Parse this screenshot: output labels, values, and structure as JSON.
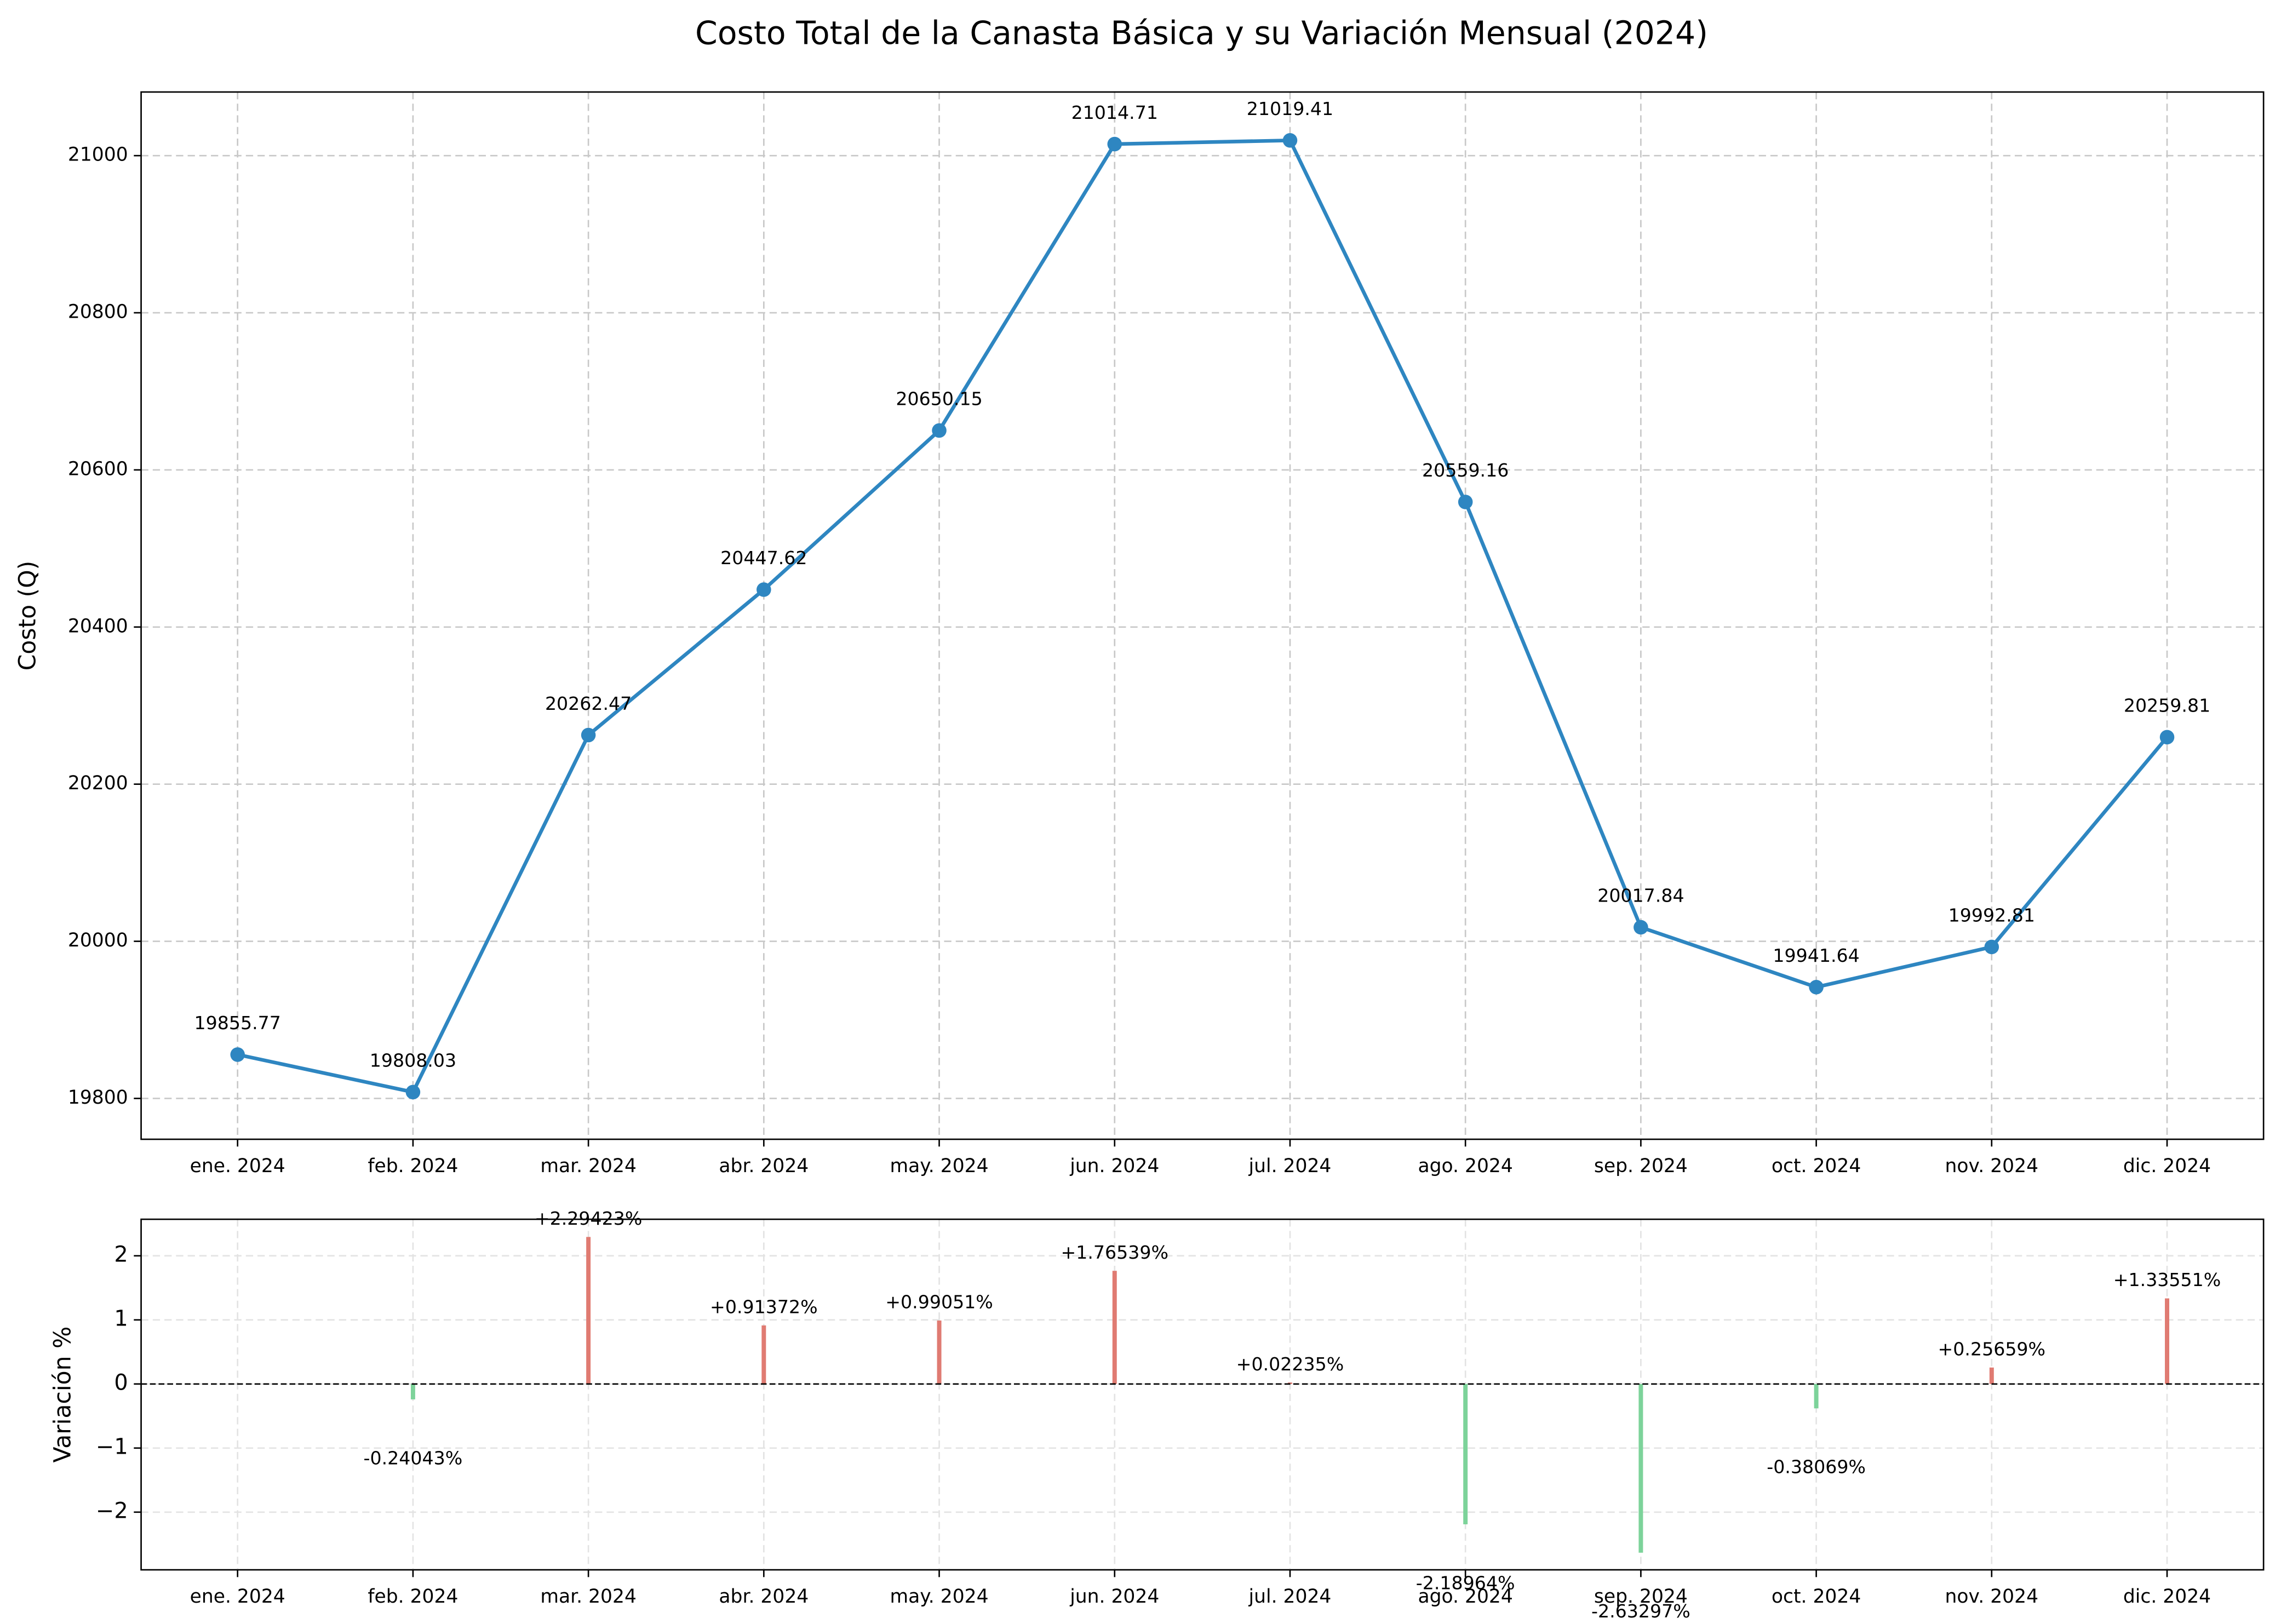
{
  "chart_data": [
    {
      "type": "line",
      "title": "Costo Total de la Canasta Básica y su Variación Mensual (2024)",
      "y_label": "Costo (Q)",
      "categories": [
        "ene. 2024",
        "feb. 2024",
        "mar. 2024",
        "abr. 2024",
        "may. 2024",
        "jun. 2024",
        "jul. 2024",
        "ago. 2024",
        "sep. 2024",
        "oct. 2024",
        "nov. 2024",
        "dic. 2024"
      ],
      "values": [
        19855.77,
        19808.03,
        20262.47,
        20447.62,
        20650.15,
        21014.71,
        21019.41,
        20559.16,
        20017.84,
        19941.64,
        19992.81,
        20259.81
      ],
      "color": "#2e86c1",
      "ylim": [
        19748,
        21081
      ],
      "yticks": [
        19800,
        20000,
        20200,
        20400,
        20600,
        20800,
        21000
      ],
      "grid": true
    },
    {
      "type": "bar",
      "y_label": "Variación %",
      "categories": [
        "ene. 2024",
        "feb. 2024",
        "mar. 2024",
        "abr. 2024",
        "may. 2024",
        "jun. 2024",
        "jul. 2024",
        "ago. 2024",
        "sep. 2024",
        "oct. 2024",
        "nov. 2024",
        "dic. 2024"
      ],
      "values": [
        null,
        -0.24043,
        2.29423,
        0.91372,
        0.99051,
        1.76539,
        0.02235,
        -2.18964,
        -2.63297,
        -0.38069,
        0.25659,
        1.33551
      ],
      "value_labels": [
        null,
        "-0.24043%",
        "+2.29423%",
        "+0.91372%",
        "+0.99051%",
        "+1.76539%",
        "+0.02235%",
        "-2.18964%",
        "-2.63297%",
        "-0.38069%",
        "+0.25659%",
        "+1.33551%"
      ],
      "positive_color": "#e07b72",
      "negative_color": "#7dd39a",
      "ylim": [
        -2.9,
        2.57
      ],
      "yticks": [
        {
          "value": -2,
          "label": "−2"
        },
        {
          "value": -1,
          "label": "−1"
        },
        0,
        1,
        2
      ],
      "grid": true
    }
  ]
}
